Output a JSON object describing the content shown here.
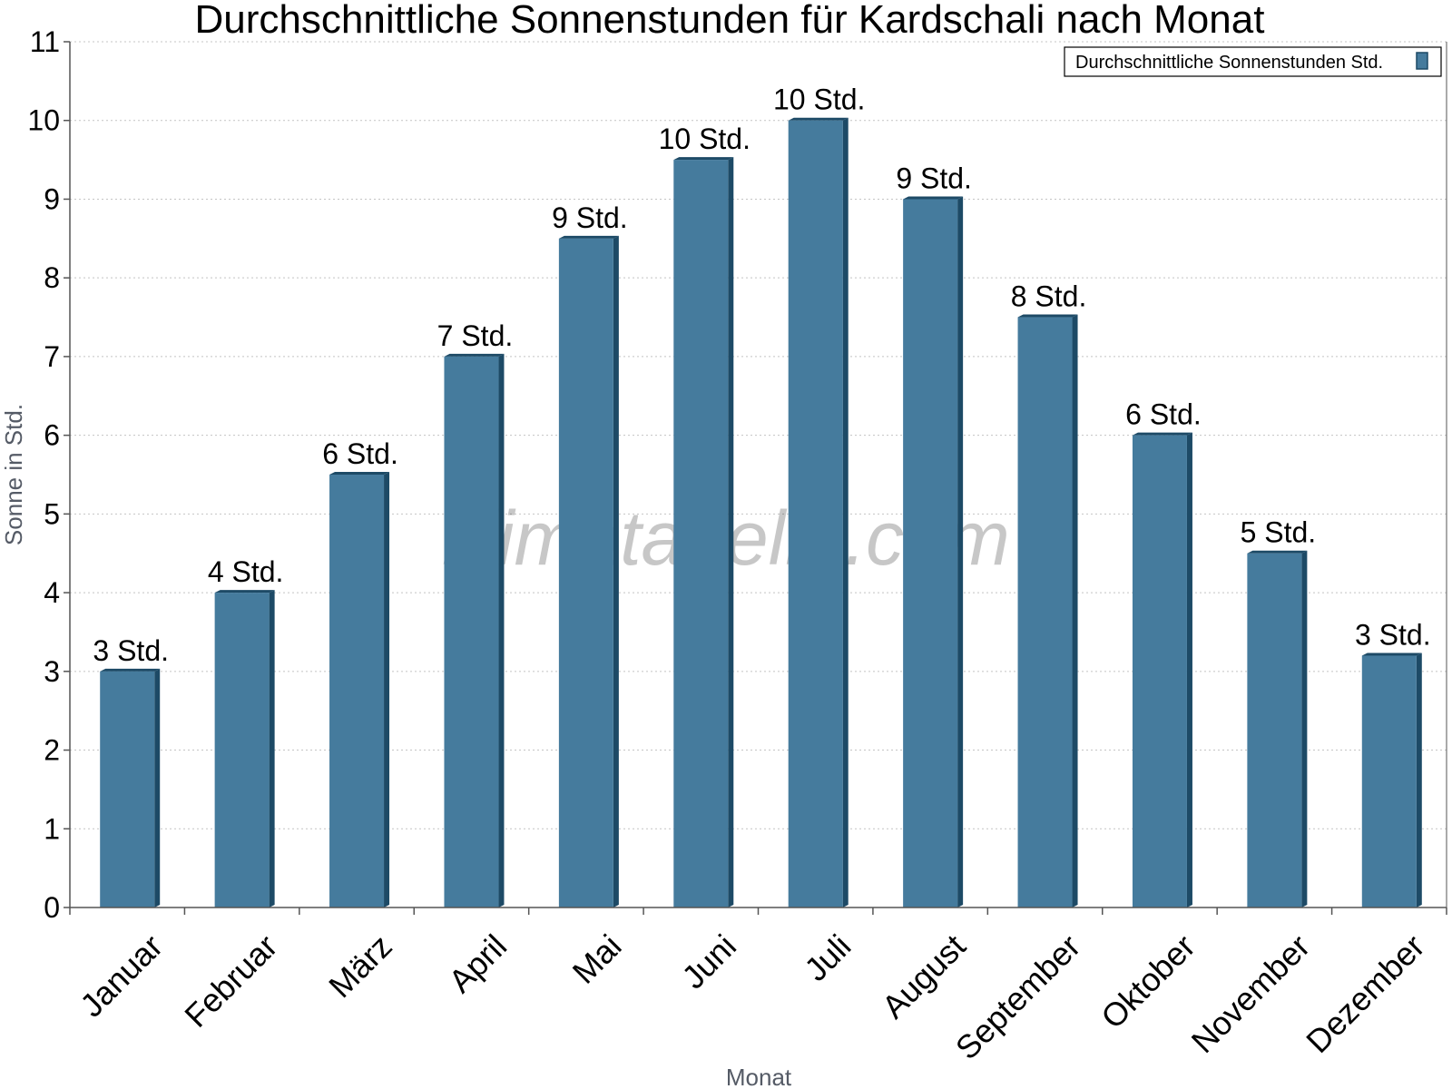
{
  "chart_data": {
    "type": "bar",
    "title": "Durchschnittliche Sonnenstunden für Kardschali nach Monat",
    "xlabel": "Monat",
    "ylabel": "Sonne in Std.",
    "ylim": [
      0,
      11
    ],
    "yticks": [
      "0",
      "1",
      "2",
      "3",
      "4",
      "5",
      "6",
      "7",
      "8",
      "9",
      "10",
      "11"
    ],
    "grid": true,
    "legend_position": "top-right",
    "categories": [
      "Januar",
      "Februar",
      "März",
      "April",
      "Mai",
      "Juni",
      "Juli",
      "August",
      "September",
      "Oktober",
      "November",
      "Dezember"
    ],
    "series": [
      {
        "name": "Durchschnittliche Sonnenstunden Std.",
        "color": "#457b9d",
        "values": [
          3.0,
          4.0,
          5.5,
          7.0,
          8.5,
          9.5,
          10.0,
          9.0,
          7.5,
          6.0,
          4.5,
          3.2
        ],
        "labels": [
          "3 Std.",
          "4 Std.",
          "6 Std.",
          "7 Std.",
          "9 Std.",
          "10 Std.",
          "10 Std.",
          "9 Std.",
          "8 Std.",
          "6 Std.",
          "5 Std.",
          "3 Std."
        ]
      }
    ],
    "watermark": "klimatabelle.com"
  }
}
